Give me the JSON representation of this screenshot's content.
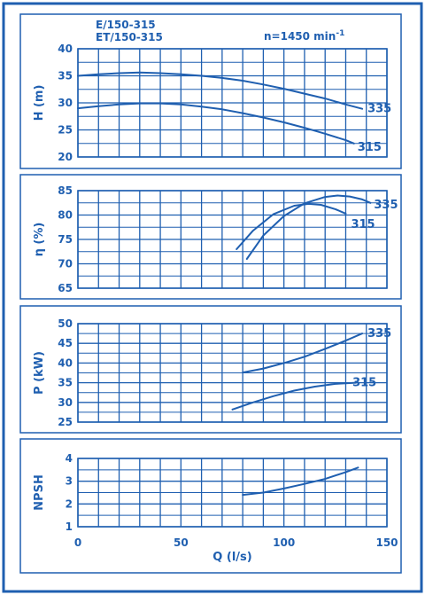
{
  "header": {
    "model_line1": "E/150-315",
    "model_line2": "ET/150-315",
    "speed": "n=1450 min",
    "speed_exp": "-1"
  },
  "colors": {
    "line": "#1f5fb0",
    "frame": "#1f5fb0",
    "panel_bg": "#ffffff"
  },
  "chart_data": [
    {
      "type": "line",
      "ylabel": "H (m)",
      "xlim": [
        0,
        150
      ],
      "ylim": [
        20,
        40
      ],
      "yticks": [
        20,
        25,
        30,
        35,
        40
      ],
      "grid": true,
      "series": [
        {
          "name": "335",
          "x": [
            0,
            10,
            20,
            30,
            40,
            50,
            60,
            70,
            80,
            90,
            100,
            110,
            120,
            130,
            138
          ],
          "y": [
            35.0,
            35.3,
            35.5,
            35.6,
            35.5,
            35.3,
            35.0,
            34.6,
            34.1,
            33.4,
            32.6,
            31.7,
            30.8,
            29.7,
            28.9
          ]
        },
        {
          "name": "315",
          "x": [
            0,
            10,
            20,
            30,
            40,
            50,
            60,
            70,
            80,
            90,
            100,
            110,
            120,
            130,
            134
          ],
          "y": [
            29.0,
            29.4,
            29.7,
            29.9,
            29.9,
            29.7,
            29.3,
            28.8,
            28.1,
            27.3,
            26.4,
            25.4,
            24.3,
            23.1,
            22.5
          ]
        }
      ]
    },
    {
      "type": "line",
      "ylabel": "η (%)",
      "xlim": [
        0,
        150
      ],
      "ylim": [
        65,
        85
      ],
      "yticks": [
        65,
        70,
        75,
        80,
        85
      ],
      "grid": true,
      "series": [
        {
          "name": "335",
          "x": [
            82,
            90,
            100,
            110,
            120,
            126,
            132,
            138,
            142
          ],
          "y": [
            71.0,
            75.8,
            79.8,
            82.4,
            83.7,
            84.0,
            83.8,
            83.2,
            82.5
          ]
        },
        {
          "name": "315",
          "x": [
            77,
            85,
            95,
            105,
            112,
            118,
            125,
            130
          ],
          "y": [
            73.0,
            76.8,
            80.2,
            81.9,
            82.3,
            82.1,
            81.2,
            80.3
          ]
        }
      ]
    },
    {
      "type": "line",
      "ylabel": "P (kW)",
      "xlim": [
        0,
        150
      ],
      "ylim": [
        25,
        50
      ],
      "yticks": [
        25,
        30,
        35,
        40,
        45,
        50
      ],
      "grid": true,
      "series": [
        {
          "name": "335",
          "x": [
            80,
            90,
            100,
            110,
            120,
            130,
            138
          ],
          "y": [
            37.6,
            38.6,
            40.0,
            41.6,
            43.6,
            45.7,
            47.5
          ]
        },
        {
          "name": "315",
          "x": [
            75,
            85,
            95,
            105,
            115,
            125,
            135
          ],
          "y": [
            28.2,
            30.0,
            31.6,
            33.0,
            34.0,
            34.7,
            35.0
          ]
        }
      ]
    },
    {
      "type": "line",
      "ylabel": "NPSH",
      "xlabel": "Q (l/s)",
      "xlim": [
        0,
        150
      ],
      "ylim": [
        1,
        4
      ],
      "yticks": [
        1,
        2,
        3,
        4
      ],
      "xticks": [
        0,
        50,
        100,
        150
      ],
      "grid": true,
      "series": [
        {
          "x": [
            80,
            90,
            100,
            110,
            120,
            130,
            136
          ],
          "y": [
            2.4,
            2.5,
            2.68,
            2.88,
            3.1,
            3.4,
            3.6
          ]
        }
      ]
    }
  ]
}
